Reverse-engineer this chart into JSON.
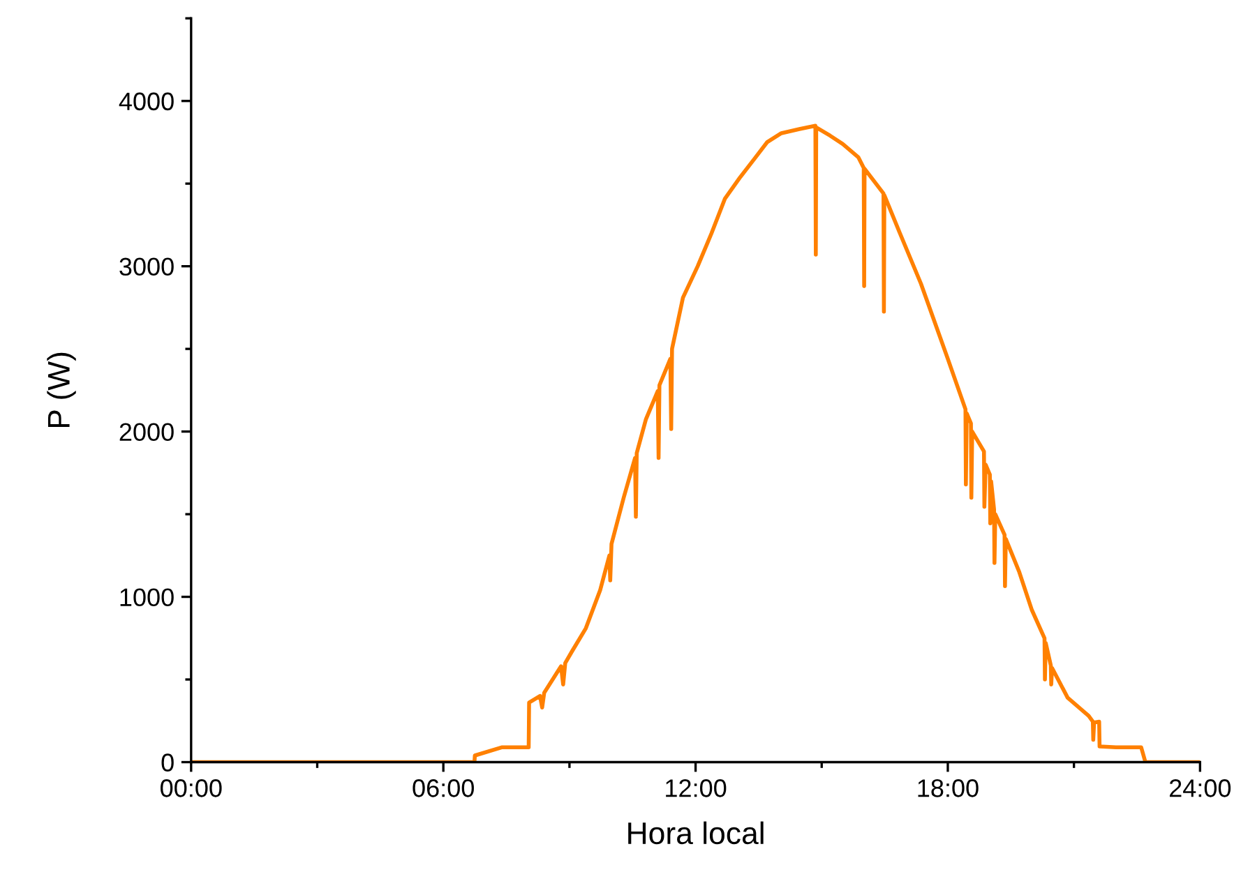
{
  "chart_data": {
    "type": "line",
    "xlabel": "Hora local",
    "ylabel": "P (W)",
    "xlim": [
      0,
      24
    ],
    "ylim": [
      0,
      4500
    ],
    "xticks": [
      {
        "value": 0,
        "label": "00:00"
      },
      {
        "value": 3,
        "label": null
      },
      {
        "value": 6,
        "label": "06:00"
      },
      {
        "value": 9,
        "label": null
      },
      {
        "value": 12,
        "label": "12:00"
      },
      {
        "value": 15,
        "label": null
      },
      {
        "value": 18,
        "label": "18:00"
      },
      {
        "value": 21,
        "label": null
      },
      {
        "value": 24,
        "label": "24:00"
      }
    ],
    "yticks": [
      0,
      {
        "value": 500,
        "label": null
      },
      1000,
      {
        "value": 1500,
        "label": null
      },
      2000,
      {
        "value": 2500,
        "label": null
      },
      3000,
      {
        "value": 3500,
        "label": null
      },
      4000,
      {
        "value": 4500,
        "label": null
      }
    ],
    "grid": false,
    "legend": false,
    "marker": "none",
    "line_style": "solid",
    "series": [
      {
        "color": "#ff8000",
        "x": [
          0,
          6.74,
          6.75,
          7.4,
          8.03,
          8.04,
          8.3,
          8.35,
          8.4,
          8.8,
          8.85,
          8.9,
          9.06,
          9.39,
          9.73,
          9.95,
          9.97,
          10.0,
          10.29,
          10.56,
          10.58,
          10.6,
          10.82,
          11.1,
          11.12,
          11.14,
          11.4,
          11.42,
          11.44,
          11.7,
          12.05,
          12.38,
          12.7,
          13.05,
          13.4,
          13.7,
          14.04,
          14.47,
          14.85,
          14.86,
          14.87,
          15.2,
          15.5,
          15.87,
          16.0,
          16.01,
          16.02,
          16.47,
          16.48,
          16.49,
          16.86,
          17.36,
          18.0,
          18.42,
          18.43,
          18.45,
          18.55,
          18.56,
          18.58,
          18.86,
          18.87,
          18.9,
          19.0,
          19.01,
          19.03,
          19.1,
          19.11,
          19.13,
          19.35,
          19.36,
          19.38,
          19.7,
          20.0,
          20.3,
          20.31,
          20.33,
          20.45,
          20.46,
          20.48,
          20.85,
          21.35,
          21.45,
          21.46,
          21.48,
          21.6,
          21.61,
          22.0,
          22.6,
          22.7,
          24
        ],
        "values": [
          0,
          0,
          40,
          90,
          90,
          360,
          400,
          330,
          420,
          580,
          470,
          600,
          670,
          810,
          1040,
          1250,
          1100,
          1320,
          1600,
          1840,
          1485,
          1870,
          2075,
          2245,
          1840,
          2280,
          2440,
          2015,
          2500,
          2810,
          3000,
          3200,
          3410,
          3535,
          3650,
          3750,
          3805,
          3830,
          3850,
          3070,
          3840,
          3790,
          3740,
          3660,
          3595,
          2880,
          3590,
          3440,
          2725,
          3430,
          3200,
          2895,
          2440,
          2135,
          1680,
          2110,
          2050,
          1600,
          2000,
          1880,
          1545,
          1800,
          1740,
          1445,
          1700,
          1530,
          1205,
          1500,
          1375,
          1065,
          1350,
          1150,
          920,
          750,
          500,
          720,
          585,
          470,
          570,
          390,
          280,
          245,
          135,
          240,
          245,
          95,
          90,
          90,
          0,
          0
        ]
      }
    ]
  }
}
